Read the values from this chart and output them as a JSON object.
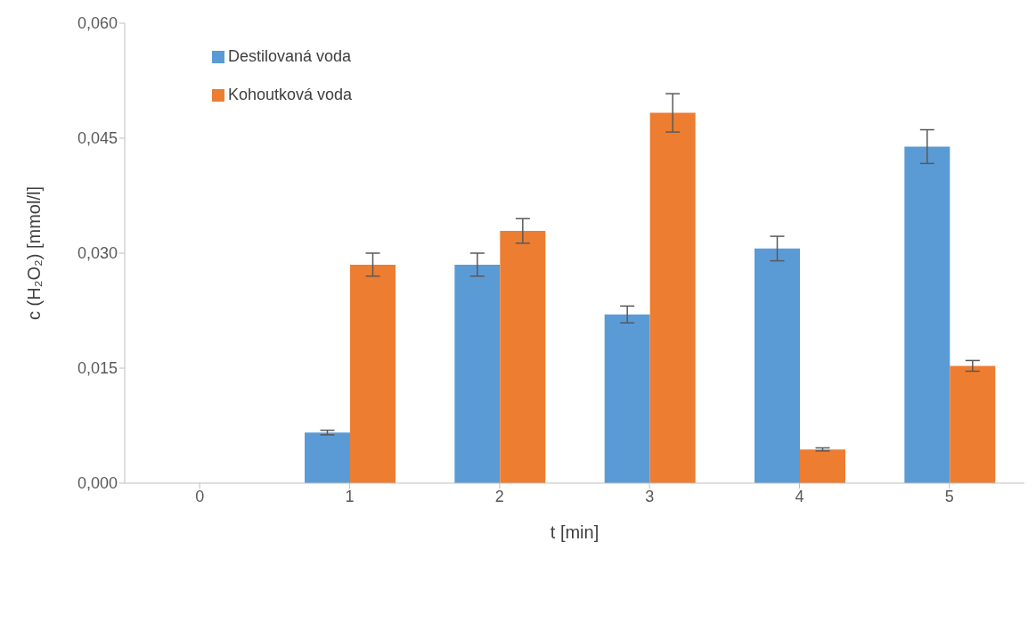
{
  "chart_data": {
    "type": "bar",
    "xlabel": "t [min]",
    "ylabel": "c (H₂O₂) [mmol/l]",
    "categories": [
      "0",
      "1",
      "2",
      "3",
      "4",
      "5"
    ],
    "series": [
      {
        "name": "Destilovaná voda",
        "color": "#5b9bd5",
        "values": [
          0,
          0.0066,
          0.0285,
          0.022,
          0.0306,
          0.0439
        ],
        "errors": [
          null,
          0.0003,
          0.0015,
          0.0011,
          0.0016,
          0.0022
        ]
      },
      {
        "name": "Kohoutková voda",
        "color": "#ed7d31",
        "values": [
          0,
          0.0285,
          0.0329,
          0.0483,
          0.0044,
          0.0153
        ],
        "errors": [
          null,
          0.0015,
          0.0016,
          0.0025,
          0.0002,
          0.0007
        ]
      }
    ],
    "ylim": [
      0,
      0.06
    ],
    "yticks": [
      {
        "value": 0,
        "label": "0,000"
      },
      {
        "value": 0.015,
        "label": "0,015"
      },
      {
        "value": 0.03,
        "label": "0,030"
      },
      {
        "value": 0.045,
        "label": "0,045"
      },
      {
        "value": 0.06,
        "label": "0,060"
      }
    ],
    "grid": false,
    "legend": "top left"
  }
}
